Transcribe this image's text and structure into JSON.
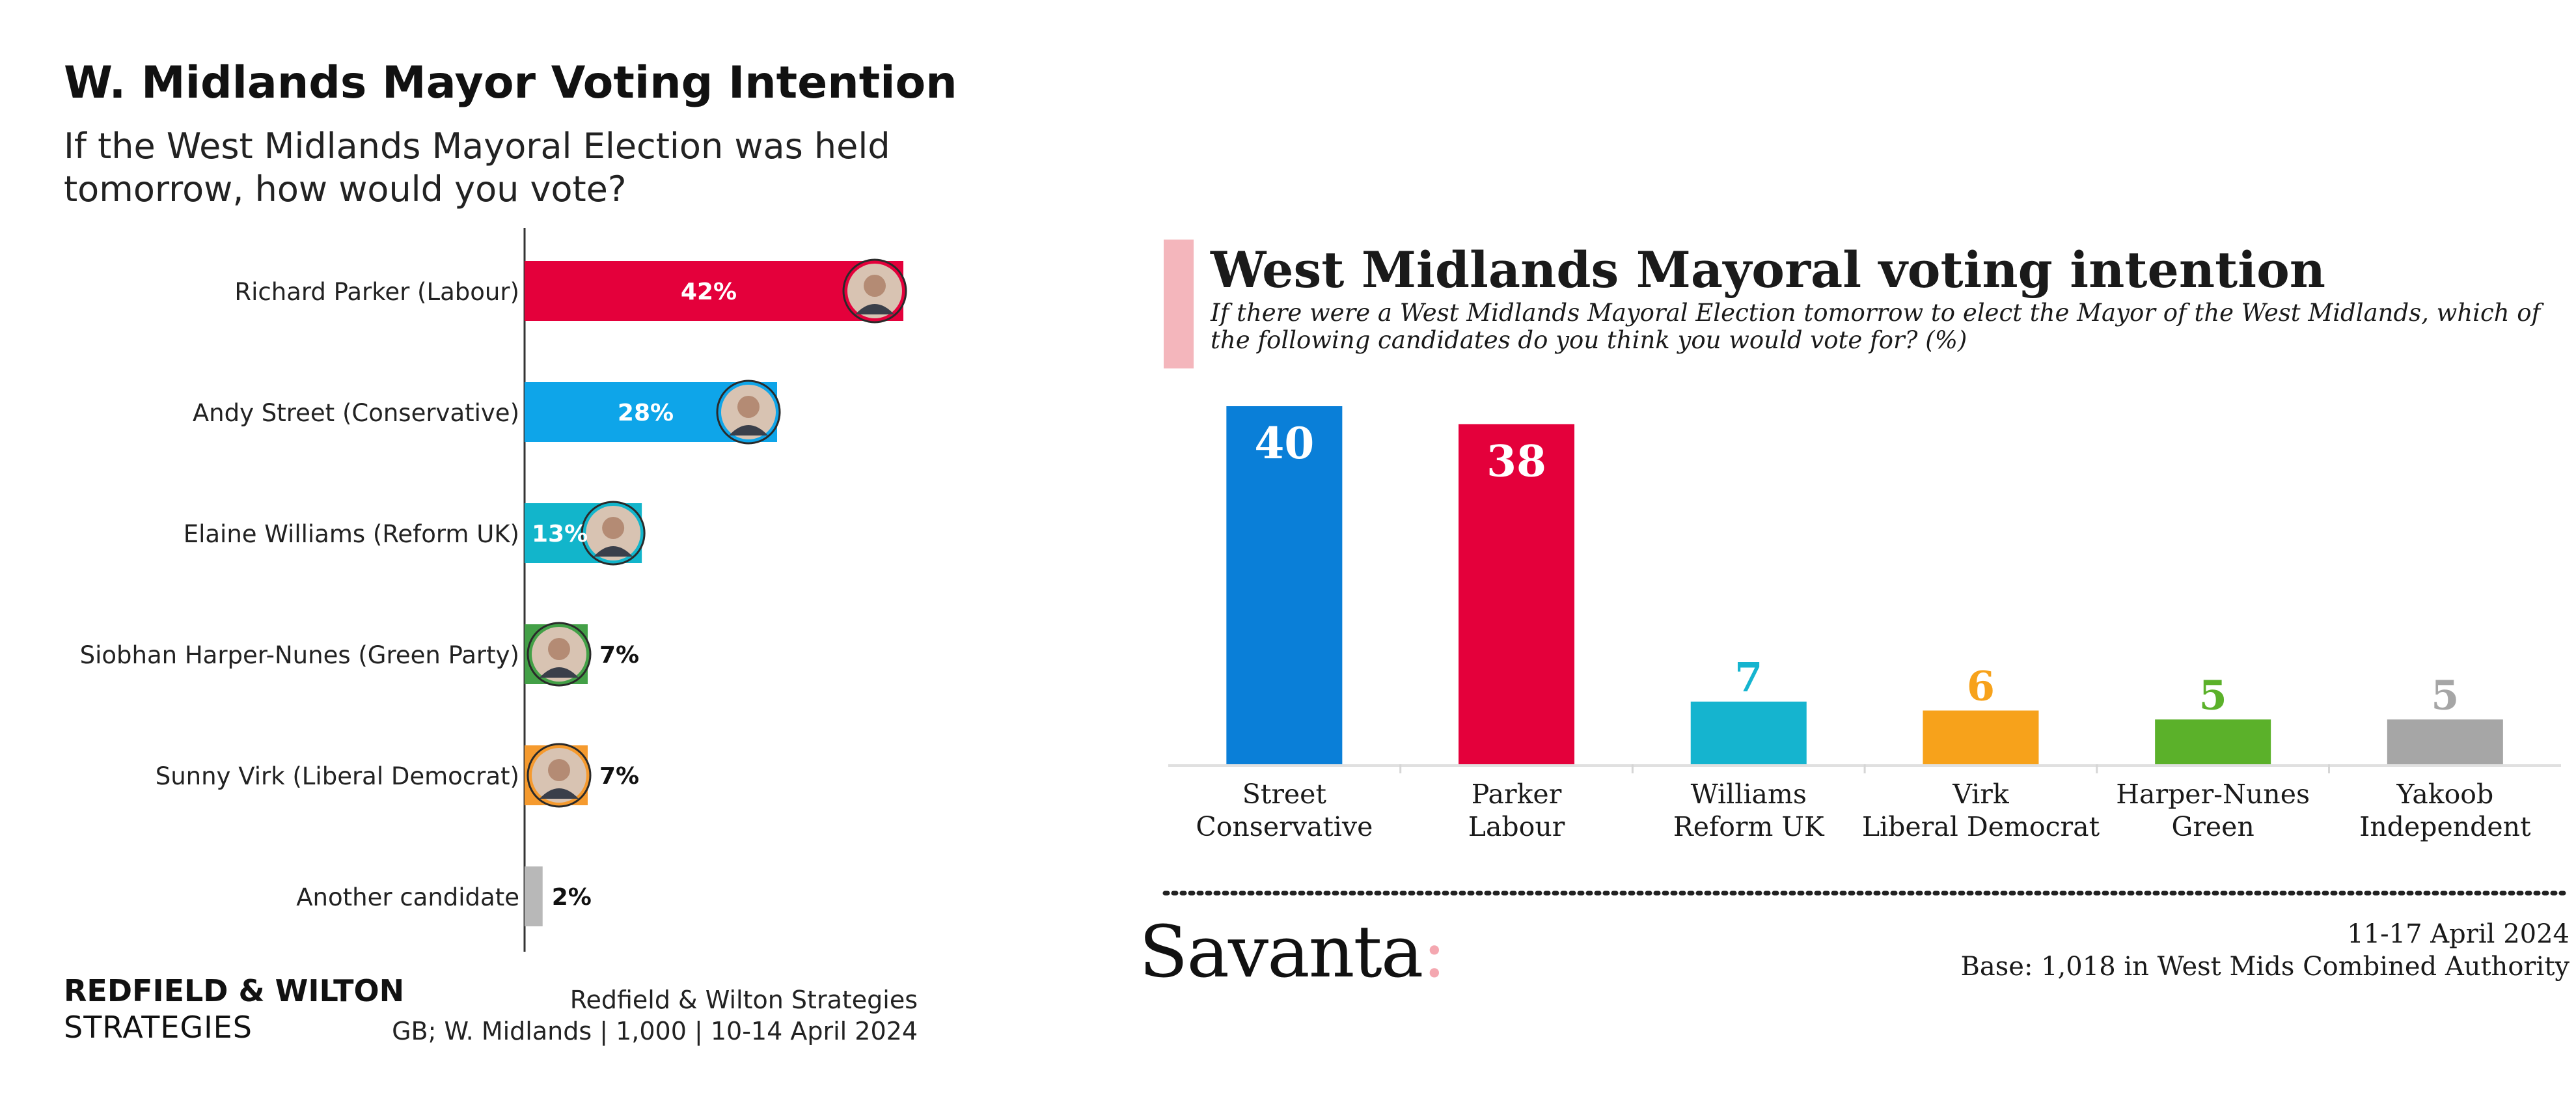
{
  "left": {
    "title": "W. Midlands Mayor Voting Intention",
    "subtitle": "If the West Midlands Mayoral Election was held tomorrow, how would you vote?",
    "footer": {
      "brand_line1": "REDFIELD & WILTON",
      "brand_line2": "STRATEGIES",
      "source_line1": "Redfield & Wilton Strategies",
      "source_line2": "GB; W. Midlands | 1,000 | 10-14 April 2024"
    }
  },
  "right": {
    "title": "West Midlands Mayoral voting intention",
    "subtitle": "If there were a West Midlands Mayoral Election tomorrow to elect the Mayor of the West Midlands, which of the following candidates do you think you would vote for? (%)",
    "logo": "Savanta",
    "logo_colon": ":",
    "date": "11-17 April 2024",
    "base": "Base: 1,018 in West Mids Combined Authority"
  },
  "chart_data": [
    {
      "type": "bar",
      "orientation": "horizontal",
      "title": "W. Midlands Mayor Voting Intention",
      "subtitle": "If the West Midlands Mayoral Election was held tomorrow, how would you vote?",
      "categories": [
        "Richard Parker (Labour)",
        "Andy Street (Conservative)",
        "Elaine Williams (Reform UK)",
        "Siobhan Harper-Nunes (Green Party)",
        "Sunny Virk (Liberal Democrat)",
        "Another candidate"
      ],
      "values": [
        42,
        28,
        13,
        7,
        7,
        2
      ],
      "value_labels": [
        "42%",
        "28%",
        "13%",
        "7%",
        "7%",
        "2%"
      ],
      "colors": [
        "#e4003b",
        "#0ea5e9",
        "#12b5cb",
        "#43a047",
        "#f59a2e",
        "#b8b8b8"
      ],
      "avatar_icons": [
        "avatar-icon",
        "avatar-icon",
        "avatar-icon",
        "avatar-icon",
        "avatar-icon",
        ""
      ],
      "xlim": [
        0,
        42
      ],
      "grid": false,
      "legend": "none"
    },
    {
      "type": "bar",
      "orientation": "vertical",
      "title": "West Midlands Mayoral voting intention",
      "categories": [
        [
          "Street",
          "Conservative"
        ],
        [
          "Parker",
          "Labour"
        ],
        [
          "Williams",
          "Reform UK"
        ],
        [
          "Virk",
          "Liberal Democrat"
        ],
        [
          "Harper-Nunes",
          "Green"
        ],
        [
          "Yakoob",
          "Independent"
        ]
      ],
      "values": [
        40,
        38,
        7,
        6,
        5,
        5
      ],
      "value_labels": [
        "40",
        "38",
        "7",
        "6",
        "5",
        "5"
      ],
      "colors": [
        "#0a7fd8",
        "#e4003b",
        "#15b4cf",
        "#f7a21b",
        "#5bb12a",
        "#a6a6a6"
      ],
      "ylim": [
        0,
        40
      ],
      "grid": false,
      "legend": "none"
    }
  ]
}
